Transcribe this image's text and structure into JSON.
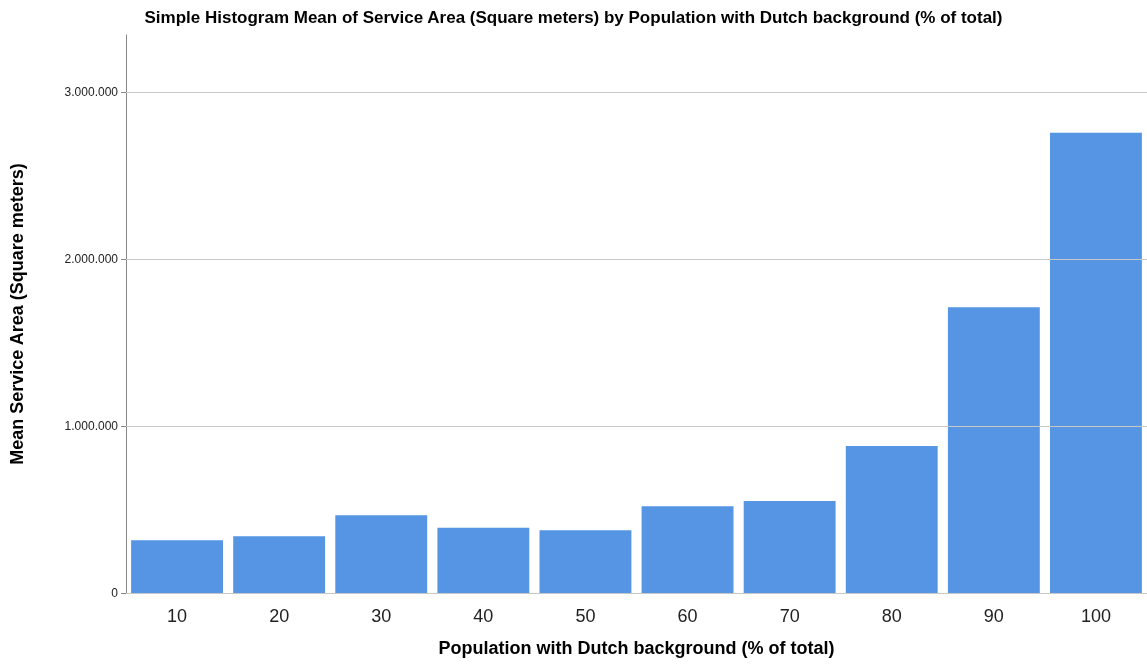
{
  "chart_data": {
    "type": "bar",
    "title": "Simple Histogram Mean of Service Area (Square meters) by Population with Dutch background (% of total)",
    "xlabel": "Population with Dutch background (% of total)",
    "ylabel": "Mean Service Area (Square meters)",
    "categories": [
      "10",
      "20",
      "30",
      "40",
      "50",
      "60",
      "70",
      "80",
      "90",
      "100"
    ],
    "values": [
      315000,
      340000,
      465000,
      390000,
      375000,
      520000,
      550000,
      880000,
      1710000,
      2755000
    ],
    "color": "#5595e3",
    "ylim": [
      0,
      3340000
    ],
    "yticks": [
      {
        "value": 0,
        "label": "0"
      },
      {
        "value": 1000000,
        "label": "1.000.000"
      },
      {
        "value": 2000000,
        "label": "2.000.000"
      },
      {
        "value": 3000000,
        "label": "3.000.000"
      }
    ],
    "grid": "y"
  }
}
